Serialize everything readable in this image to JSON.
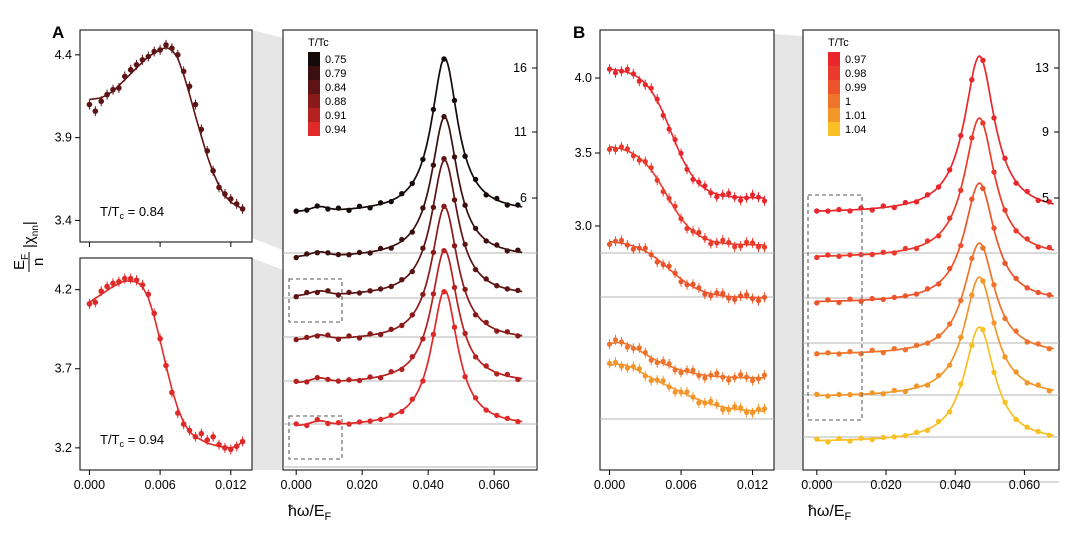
{
  "panel_labels": [
    "A",
    "B"
  ],
  "y_axis_label": "E_F/n |χ_nn|",
  "x_axis_label": "ħω/E_F",
  "chart_data": [
    {
      "id": "A-inset-top",
      "type": "scatter",
      "title": "",
      "annotation": {
        "text": "T/T",
        "sub": "c",
        "value": "= 0.84"
      },
      "xlim": [
        -0.0008,
        0.0138
      ],
      "ylim": [
        3.27,
        4.55
      ],
      "xticks": [
        0.0,
        0.006,
        0.012
      ],
      "xtick_labels": [
        "",
        "",
        ""
      ],
      "yticks": [
        3.4,
        3.9,
        4.4
      ],
      "ytick_labels": [
        "3.4",
        "3.9",
        "4.4"
      ],
      "color": "#5e1414",
      "points": [
        [
          0.0,
          4.1
        ],
        [
          0.0005,
          4.06
        ],
        [
          0.001,
          4.12
        ],
        [
          0.0015,
          4.16
        ],
        [
          0.002,
          4.19
        ],
        [
          0.0025,
          4.2
        ],
        [
          0.003,
          4.27
        ],
        [
          0.0035,
          4.31
        ],
        [
          0.004,
          4.34
        ],
        [
          0.0045,
          4.37
        ],
        [
          0.005,
          4.39
        ],
        [
          0.0055,
          4.42
        ],
        [
          0.006,
          4.43
        ],
        [
          0.0065,
          4.46
        ],
        [
          0.007,
          4.44
        ],
        [
          0.0075,
          4.4
        ],
        [
          0.008,
          4.3
        ],
        [
          0.0085,
          4.21
        ],
        [
          0.009,
          4.1
        ],
        [
          0.0095,
          3.95
        ],
        [
          0.01,
          3.82
        ],
        [
          0.0105,
          3.7
        ],
        [
          0.011,
          3.6
        ],
        [
          0.0115,
          3.56
        ],
        [
          0.012,
          3.53
        ],
        [
          0.0125,
          3.5
        ],
        [
          0.013,
          3.47
        ]
      ],
      "fit": [
        [
          0.0,
          4.13
        ],
        [
          0.001,
          4.14
        ],
        [
          0.002,
          4.18
        ],
        [
          0.003,
          4.25
        ],
        [
          0.004,
          4.32
        ],
        [
          0.005,
          4.39
        ],
        [
          0.006,
          4.43
        ],
        [
          0.0065,
          4.445
        ],
        [
          0.007,
          4.43
        ],
        [
          0.0075,
          4.38
        ],
        [
          0.008,
          4.28
        ],
        [
          0.0085,
          4.16
        ],
        [
          0.009,
          4.03
        ],
        [
          0.0095,
          3.91
        ],
        [
          0.01,
          3.79
        ],
        [
          0.0105,
          3.69
        ],
        [
          0.011,
          3.61
        ],
        [
          0.0115,
          3.55
        ],
        [
          0.012,
          3.51
        ],
        [
          0.0125,
          3.49
        ],
        [
          0.013,
          3.47
        ]
      ]
    },
    {
      "id": "A-inset-bottom",
      "type": "scatter",
      "title": "",
      "annotation": {
        "text": "T/T",
        "sub": "c",
        "value": "= 0.94"
      },
      "xlim": [
        -0.0008,
        0.0138
      ],
      "ylim": [
        3.06,
        4.4
      ],
      "xticks": [
        0.0,
        0.006,
        0.012
      ],
      "xtick_labels": [
        "0.000",
        "0.006",
        "0.012"
      ],
      "yticks": [
        3.2,
        3.7,
        4.2
      ],
      "ytick_labels": [
        "3.2",
        "3.7",
        "4.2"
      ],
      "color": "#e02a2a",
      "points": [
        [
          0.0,
          4.11
        ],
        [
          0.0005,
          4.12
        ],
        [
          0.001,
          4.19
        ],
        [
          0.0015,
          4.22
        ],
        [
          0.002,
          4.24
        ],
        [
          0.0025,
          4.25
        ],
        [
          0.003,
          4.27
        ],
        [
          0.0035,
          4.27
        ],
        [
          0.004,
          4.26
        ],
        [
          0.0045,
          4.23
        ],
        [
          0.005,
          4.17
        ],
        [
          0.0055,
          4.05
        ],
        [
          0.006,
          3.89
        ],
        [
          0.0065,
          3.72
        ],
        [
          0.007,
          3.55
        ],
        [
          0.0075,
          3.42
        ],
        [
          0.008,
          3.35
        ],
        [
          0.0085,
          3.31
        ],
        [
          0.009,
          3.27
        ],
        [
          0.0095,
          3.29
        ],
        [
          0.01,
          3.25
        ],
        [
          0.0105,
          3.27
        ],
        [
          0.011,
          3.22
        ],
        [
          0.0115,
          3.2
        ],
        [
          0.012,
          3.19
        ],
        [
          0.0125,
          3.21
        ],
        [
          0.013,
          3.24
        ]
      ],
      "fit": [
        [
          0.0,
          4.12
        ],
        [
          0.001,
          4.17
        ],
        [
          0.002,
          4.22
        ],
        [
          0.003,
          4.255
        ],
        [
          0.004,
          4.25
        ],
        [
          0.0045,
          4.22
        ],
        [
          0.005,
          4.15
        ],
        [
          0.0055,
          4.03
        ],
        [
          0.006,
          3.88
        ],
        [
          0.0065,
          3.72
        ],
        [
          0.007,
          3.57
        ],
        [
          0.0075,
          3.45
        ],
        [
          0.008,
          3.36
        ],
        [
          0.0085,
          3.3
        ],
        [
          0.009,
          3.27
        ],
        [
          0.01,
          3.23
        ],
        [
          0.011,
          3.21
        ],
        [
          0.012,
          3.2
        ],
        [
          0.0125,
          3.21
        ],
        [
          0.013,
          3.24
        ]
      ]
    },
    {
      "id": "A-main",
      "type": "scatter",
      "title": "",
      "xlabel": "ħω/E_F",
      "xlim": [
        -0.004,
        0.073
      ],
      "ylim": [
        0,
        1
      ],
      "xticks": [
        0.0,
        0.02,
        0.04,
        0.06
      ],
      "xtick_labels": [
        "0.000",
        "0.020",
        "0.040",
        "0.060"
      ],
      "right_ticks": [
        "16",
        "11",
        "6"
      ],
      "legend": {
        "title": "T/Tc",
        "placement": "top-left",
        "labels": [
          "0.75",
          "0.79",
          "0.84",
          "0.88",
          "0.91",
          "0.94"
        ]
      },
      "series": [
        {
          "name": "0.75",
          "color": "#140a0a",
          "x": [
            0.0,
            0.004,
            0.008,
            0.012,
            0.016,
            0.02,
            0.024,
            0.028,
            0.032,
            0.036,
            0.04,
            0.044,
            0.048,
            0.052,
            0.056,
            0.06,
            0.064,
            0.068
          ],
          "y": [
            1.0,
            1.0,
            1.1,
            1.2,
            1.4,
            1.8,
            2.5,
            3.6,
            5.3,
            8.2,
            12.8,
            17.7,
            13.5,
            8.9,
            6.2,
            4.5,
            3.3,
            2.4
          ]
        },
        {
          "name": "0.79",
          "color": "#3d1010",
          "x": [
            0.0,
            0.004,
            0.008,
            0.012,
            0.016,
            0.02,
            0.024,
            0.028,
            0.032,
            0.036,
            0.04,
            0.044,
            0.048,
            0.052,
            0.056,
            0.06,
            0.064,
            0.068
          ],
          "y": [
            1.0,
            1.0,
            1.2,
            1.2,
            1.4,
            1.8,
            2.5,
            3.6,
            5.2,
            8.0,
            12.4,
            17.2,
            13.3,
            8.7,
            6.0,
            4.3,
            3.2,
            2.3
          ]
        },
        {
          "name": "0.84",
          "color": "#5e1414",
          "x": [
            0.0,
            0.004,
            0.008,
            0.012,
            0.016,
            0.02,
            0.024,
            0.028,
            0.032,
            0.036,
            0.04,
            0.044,
            0.048,
            0.052,
            0.056,
            0.06,
            0.064,
            0.068
          ],
          "y": [
            1.0,
            1.0,
            1.1,
            1.2,
            1.4,
            1.8,
            2.4,
            3.5,
            5.1,
            7.9,
            12.2,
            17.0,
            13.1,
            8.6,
            5.9,
            4.2,
            3.1,
            2.3
          ]
        },
        {
          "name": "0.88",
          "color": "#8a1a1a",
          "x": [
            0.0,
            0.004,
            0.008,
            0.012,
            0.016,
            0.02,
            0.024,
            0.028,
            0.032,
            0.036,
            0.04,
            0.044,
            0.048,
            0.052,
            0.056,
            0.06,
            0.064,
            0.068
          ],
          "y": [
            1.0,
            1.0,
            1.1,
            1.2,
            1.3,
            1.7,
            2.4,
            3.4,
            5.0,
            7.7,
            12.0,
            16.8,
            12.9,
            8.4,
            5.8,
            4.1,
            3.0,
            2.2
          ]
        },
        {
          "name": "0.91",
          "color": "#b52020",
          "x": [
            0.0,
            0.004,
            0.008,
            0.012,
            0.016,
            0.02,
            0.024,
            0.028,
            0.032,
            0.036,
            0.04,
            0.044,
            0.048,
            0.052,
            0.056,
            0.06,
            0.064,
            0.068
          ],
          "y": [
            1.0,
            1.0,
            1.1,
            1.2,
            1.3,
            1.7,
            2.3,
            3.3,
            4.9,
            7.6,
            11.8,
            16.6,
            12.8,
            8.3,
            5.7,
            4.0,
            2.9,
            2.2
          ]
        },
        {
          "name": "0.94",
          "color": "#e02a2a",
          "x": [
            0.0,
            0.004,
            0.008,
            0.012,
            0.016,
            0.02,
            0.024,
            0.028,
            0.032,
            0.036,
            0.04,
            0.044,
            0.048,
            0.052,
            0.056,
            0.06,
            0.064,
            0.068
          ],
          "y": [
            1.0,
            1.0,
            1.1,
            1.2,
            1.3,
            1.6,
            2.2,
            3.2,
            4.8,
            7.5,
            11.7,
            16.5,
            12.7,
            8.2,
            5.6,
            3.9,
            2.8,
            2.1
          ]
        }
      ]
    },
    {
      "id": "B-inset",
      "type": "scatter",
      "title": "",
      "xlim": [
        -0.0008,
        0.0138
      ],
      "ylim": [
        0,
        1
      ],
      "xticks": [
        0.0,
        0.006,
        0.012
      ],
      "xtick_labels": [
        "0.000",
        "0.006",
        "0.012"
      ],
      "yticks_labels": [
        "4.0",
        "3.5",
        "3.0"
      ],
      "series_names": [
        "0.97",
        "0.98",
        "0.99",
        "1",
        "1.01",
        "1.04"
      ]
    },
    {
      "id": "B-main",
      "type": "scatter",
      "title": "",
      "xlabel": "ħω/E_F",
      "xlim": [
        -0.004,
        0.07
      ],
      "ylim": [
        0,
        1
      ],
      "xticks": [
        0.0,
        0.02,
        0.04,
        0.06
      ],
      "xtick_labels": [
        "0.000",
        "0.020",
        "0.040",
        "0.060"
      ],
      "right_ticks": [
        "13",
        "9",
        "5"
      ],
      "legend": {
        "title": "T/Tc",
        "placement": "top-left",
        "labels": [
          "0.97",
          "0.98",
          "0.99",
          "1",
          "1.01",
          "1.04"
        ]
      },
      "series": [
        {
          "name": "0.97",
          "color": "#e8262b"
        },
        {
          "name": "0.98",
          "color": "#ea3a2b"
        },
        {
          "name": "0.99",
          "color": "#ec552b"
        },
        {
          "name": "1",
          "color": "#ef732b"
        },
        {
          "name": "1.01",
          "color": "#f3962a"
        },
        {
          "name": "1.04",
          "color": "#f8c024"
        }
      ]
    }
  ]
}
